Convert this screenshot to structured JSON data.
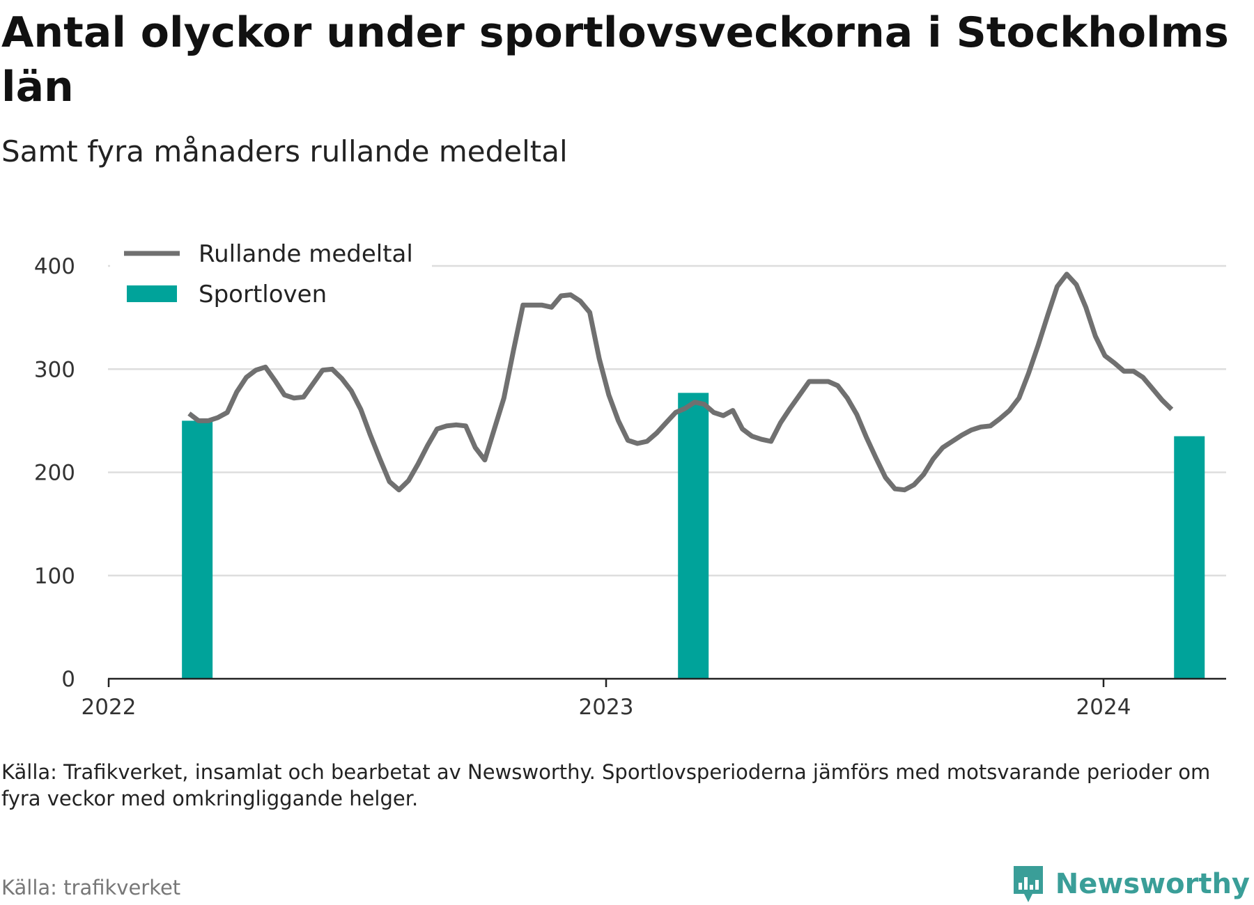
{
  "header": {
    "title": "Antal olyckor under sportlovsveckorna i Stockholms län",
    "subtitle": "Samt fyra månaders rullande medeltal"
  },
  "chart_data": {
    "type": "line+bar",
    "title": "Antal olyckor under sportlovsveckorna i Stockholms län",
    "subtitle": "Samt fyra månaders rullande medeltal",
    "xlabel": "",
    "ylabel": "",
    "ylim": [
      0,
      400
    ],
    "y_ticks": [
      0,
      100,
      200,
      300,
      400
    ],
    "x_ticks": [
      "2022",
      "2023",
      "2024"
    ],
    "grid": true,
    "legend_position": "top-left",
    "colors": {
      "line": "#707070",
      "bars": "#00a39a",
      "grid": "#dddddd",
      "axis": "#222222"
    },
    "series": [
      {
        "name": "Rullande medeltal",
        "kind": "line",
        "x": [
          "2022-03-01",
          "2022-03-08",
          "2022-03-15",
          "2022-03-22",
          "2022-03-29",
          "2022-04-05",
          "2022-04-12",
          "2022-04-19",
          "2022-04-26",
          "2022-05-03",
          "2022-05-10",
          "2022-05-17",
          "2022-05-24",
          "2022-05-31",
          "2022-06-07",
          "2022-06-14",
          "2022-06-21",
          "2022-06-28",
          "2022-07-05",
          "2022-07-12",
          "2022-07-19",
          "2022-07-26",
          "2022-08-02",
          "2022-08-09",
          "2022-08-16",
          "2022-08-23",
          "2022-08-30",
          "2022-09-06",
          "2022-09-13",
          "2022-09-20",
          "2022-09-27",
          "2022-10-04",
          "2022-10-11",
          "2022-10-18",
          "2022-10-25",
          "2022-11-01",
          "2022-11-08",
          "2022-11-15",
          "2022-11-22",
          "2022-11-29",
          "2022-12-06",
          "2022-12-13",
          "2022-12-20",
          "2022-12-27",
          "2023-01-03",
          "2023-01-10",
          "2023-01-17",
          "2023-01-24",
          "2023-01-31",
          "2023-02-07",
          "2023-02-14",
          "2023-02-21",
          "2023-02-28",
          "2023-03-07",
          "2023-03-14",
          "2023-03-21",
          "2023-03-28",
          "2023-04-04",
          "2023-04-11",
          "2023-04-18",
          "2023-04-25",
          "2023-05-02",
          "2023-05-09",
          "2023-05-16",
          "2023-05-23",
          "2023-05-30",
          "2023-06-06",
          "2023-06-13",
          "2023-06-20",
          "2023-06-27",
          "2023-07-04",
          "2023-07-11",
          "2023-07-18",
          "2023-07-25",
          "2023-08-01",
          "2023-08-08",
          "2023-08-15",
          "2023-08-22",
          "2023-08-29",
          "2023-09-05",
          "2023-09-12",
          "2023-09-19",
          "2023-09-26",
          "2023-10-03",
          "2023-10-10",
          "2023-10-17",
          "2023-10-24",
          "2023-10-31",
          "2023-11-07",
          "2023-11-14",
          "2023-11-21",
          "2023-11-28",
          "2023-12-05",
          "2023-12-12",
          "2023-12-19",
          "2023-12-26",
          "2024-01-02",
          "2024-01-09",
          "2024-01-16",
          "2024-01-23",
          "2024-01-30",
          "2024-02-06",
          "2024-02-13",
          "2024-02-20"
        ],
        "values": [
          257,
          250,
          250,
          253,
          258,
          278,
          292,
          299,
          302,
          289,
          275,
          272,
          273,
          286,
          299,
          300,
          291,
          279,
          261,
          236,
          213,
          191,
          183,
          192,
          208,
          226,
          242,
          245,
          246,
          245,
          224,
          212,
          242,
          272,
          318,
          362,
          362,
          362,
          360,
          371,
          372,
          366,
          355,
          310,
          275,
          250,
          231,
          228,
          230,
          238,
          248,
          258,
          262,
          268,
          266,
          258,
          255,
          260,
          242,
          235,
          232,
          230,
          248,
          262,
          275,
          288,
          288,
          288,
          284,
          272,
          256,
          234,
          214,
          195,
          184,
          183,
          188,
          198,
          213,
          224,
          230,
          236,
          241,
          244,
          245,
          252,
          260,
          272,
          296,
          323,
          352,
          380,
          392,
          382,
          360,
          332,
          313,
          306,
          298,
          298,
          292,
          281,
          270,
          261
        ]
      },
      {
        "name": "Sportloven",
        "kind": "bar",
        "x": [
          "2022-03-07",
          "2023-03-06",
          "2024-03-04"
        ],
        "values": [
          250,
          277,
          235
        ]
      }
    ]
  },
  "footer": {
    "note": "Källa: Trafikverket, insamlat och bearbetat av Newsworthy. Sportlovsperioderna jämförs med motsvarande perioder om fyra veckor med omkringliggande helger.",
    "source": "Källa: trafikverket",
    "brand": "Newsworthy"
  }
}
